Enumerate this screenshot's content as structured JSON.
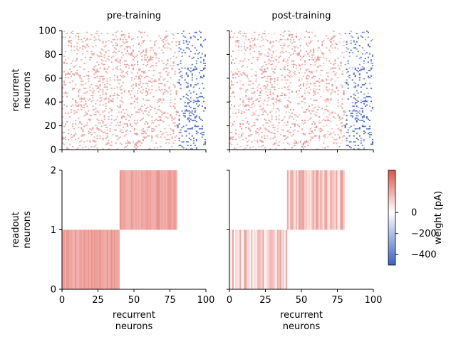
{
  "chart_data": {
    "type": "heatmap",
    "colorbar": {
      "label": "weight (pA)",
      "ticks": [
        0,
        -200,
        -400
      ],
      "range": [
        -500,
        400
      ],
      "colors": {
        "negative": "#3b5fc7",
        "zero": "#ffffff",
        "positive": "#e0534a"
      }
    },
    "panels": [
      {
        "id": "rec-pre",
        "title": "pre-training",
        "ylabel": "recurrent neurons",
        "xlim": [
          0,
          100
        ],
        "ylim": [
          0,
          100
        ],
        "yticks": [
          0,
          20,
          40,
          60,
          80,
          100
        ],
        "excitatory_cols": [
          0,
          80
        ],
        "inhibitory_cols": [
          80,
          100
        ],
        "connection_density": 0.14,
        "excitatory_weight": 220,
        "inhibitory_weight": -440,
        "seed": 11
      },
      {
        "id": "rec-post",
        "title": "post-training",
        "xlim": [
          0,
          100
        ],
        "ylim": [
          0,
          100
        ],
        "excitatory_cols": [
          0,
          80
        ],
        "inhibitory_cols": [
          80,
          100
        ],
        "connection_density": 0.14,
        "excitatory_weight": 210,
        "inhibitory_weight": -450,
        "seed": 11
      },
      {
        "id": "out-pre",
        "ylabel": "readout neurons",
        "xlabel": "recurrent neurons",
        "xlim": [
          0,
          100
        ],
        "ylim": [
          0,
          2
        ],
        "xticks": [
          0,
          25,
          50,
          75,
          100
        ],
        "yticks": [
          0,
          1,
          2
        ],
        "blocks": [
          {
            "row": 0,
            "cols": [
              0,
              40
            ],
            "weight_range": [
              170,
              260
            ]
          },
          {
            "row": 1,
            "cols": [
              40,
              80
            ],
            "weight_range": [
              170,
              260
            ]
          }
        ],
        "seed": 5
      },
      {
        "id": "out-post",
        "xlabel": "recurrent neurons",
        "xlim": [
          0,
          100
        ],
        "ylim": [
          0,
          2
        ],
        "xticks": [
          0,
          25,
          50,
          75,
          100
        ],
        "blocks": [
          {
            "row": 0,
            "cols": [
              0,
              40
            ],
            "weight_range": [
              0,
              230
            ]
          },
          {
            "row": 1,
            "cols": [
              40,
              80
            ],
            "weight_range": [
              30,
              240
            ]
          }
        ],
        "seed": 9
      }
    ]
  }
}
